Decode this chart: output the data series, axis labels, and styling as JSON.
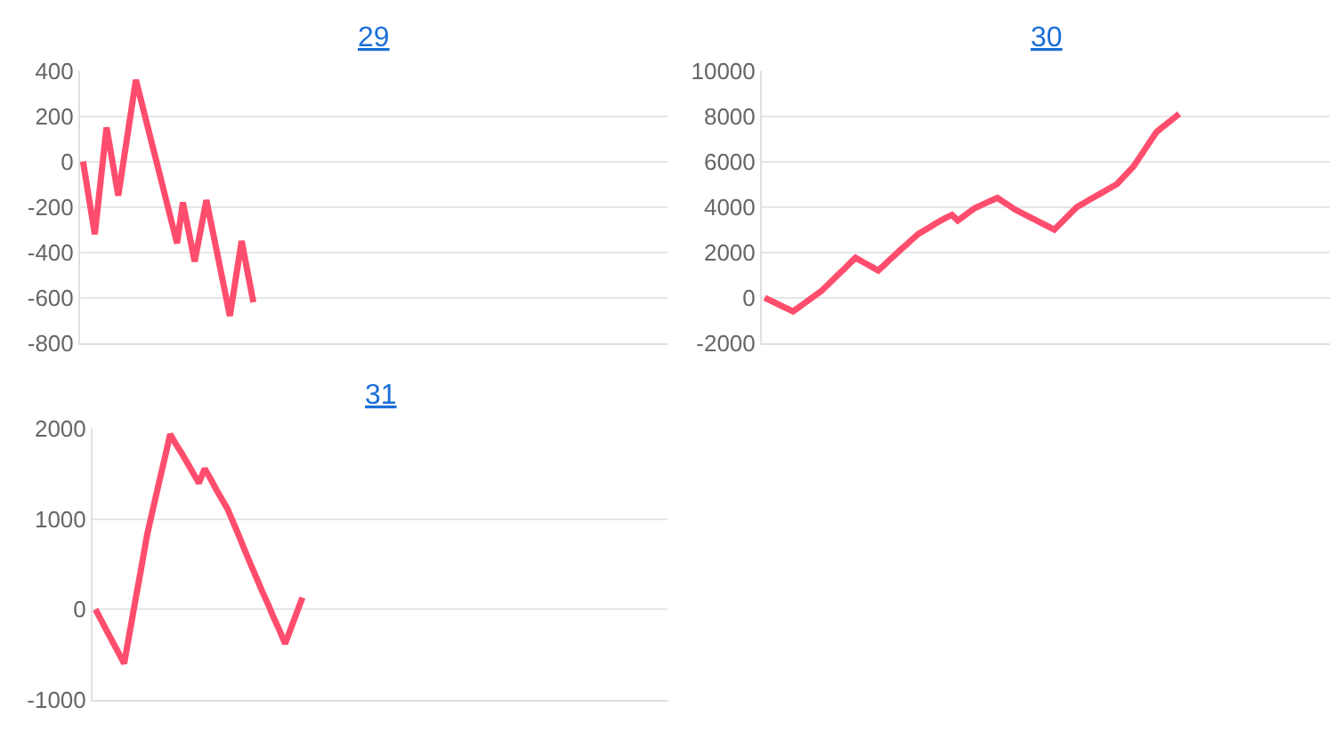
{
  "chart_data": [
    {
      "type": "line",
      "title": "29",
      "color": "#ff4d6d",
      "grid": "y",
      "tick_labels": "y",
      "marker": "none",
      "line_style": "solid",
      "ylim": [
        -800,
        400
      ],
      "yticks": [
        -800,
        -600,
        -400,
        -200,
        0,
        200,
        400
      ],
      "categories": [
        null,
        null,
        null,
        null,
        null,
        null,
        null,
        null,
        null,
        null,
        null,
        null,
        null,
        null,
        null,
        null,
        null,
        null,
        null,
        null,
        null,
        null,
        null,
        null,
        null,
        null,
        null,
        null,
        null,
        null,
        null,
        null,
        null,
        null,
        null,
        null,
        null,
        null,
        null,
        null,
        null,
        null,
        null,
        null,
        null,
        null,
        null,
        null,
        null,
        null,
        null,
        null,
        null,
        null,
        null,
        null,
        null,
        null,
        null,
        null,
        null,
        null,
        null,
        null,
        null,
        null,
        null,
        null,
        null,
        null,
        null,
        null,
        null,
        null,
        null,
        null,
        null,
        null,
        null,
        null,
        null,
        null,
        null,
        null,
        null,
        null,
        null,
        null,
        null,
        null,
        null,
        null,
        null,
        null,
        null,
        null,
        null,
        null,
        null,
        null
      ],
      "values": [
        0,
        -160,
        -320,
        -85,
        150,
        0,
        -150,
        20,
        190,
        360,
        257,
        154,
        51,
        -51,
        -154,
        -257,
        -360,
        -180,
        -310,
        -440,
        -305,
        -170,
        -297,
        -425,
        -552,
        -680,
        -515,
        -350,
        -485,
        -620,
        null,
        null,
        null,
        null,
        null,
        null,
        null,
        null,
        null,
        null,
        null,
        null,
        null,
        null,
        null,
        null,
        null,
        null,
        null,
        null,
        null,
        null,
        null,
        null,
        null,
        null,
        null,
        null,
        null,
        null,
        null,
        null,
        null,
        null,
        null,
        null,
        null,
        null,
        null,
        null,
        null,
        null,
        null,
        null,
        null,
        null,
        null,
        null,
        null,
        null,
        null,
        null,
        null,
        null,
        null,
        null,
        null,
        null,
        null,
        null,
        null,
        null,
        null,
        null,
        null,
        null,
        null,
        null,
        null,
        null
      ]
    },
    {
      "type": "line",
      "title": "30",
      "color": "#ff4d6d",
      "grid": "y",
      "tick_labels": "y",
      "marker": "none",
      "line_style": "solid",
      "ylim": [
        -2000,
        10000
      ],
      "yticks": [
        -2000,
        0,
        2000,
        4000,
        6000,
        8000,
        10000
      ],
      "categories": [
        null,
        null,
        null,
        null,
        null,
        null,
        null,
        null,
        null,
        null,
        null,
        null,
        null,
        null,
        null,
        null,
        null,
        null,
        null,
        null,
        null,
        null,
        null,
        null,
        null,
        null,
        null,
        null,
        null,
        null,
        null,
        null,
        null,
        null,
        null,
        null,
        null,
        null,
        null,
        null,
        null,
        null,
        null,
        null,
        null,
        null,
        null,
        null,
        null,
        null,
        null,
        null,
        null,
        null,
        null,
        null,
        null,
        null,
        null,
        null,
        null,
        null,
        null,
        null,
        null,
        null,
        null,
        null,
        null,
        null,
        null,
        null,
        null,
        null,
        null,
        null,
        null,
        null,
        null,
        null,
        null,
        null,
        null,
        null,
        null,
        null,
        null,
        null,
        null,
        null,
        null,
        null,
        null,
        null,
        null,
        null,
        null,
        null,
        null,
        null
      ],
      "values": [
        0,
        -120,
        -240,
        -360,
        -480,
        -600,
        -420,
        -240,
        -60,
        120,
        300,
        540,
        790,
        1030,
        1270,
        1520,
        1760,
        1620,
        1480,
        1340,
        1200,
        1430,
        1670,
        1900,
        2130,
        2350,
        2580,
        2800,
        2950,
        3100,
        3250,
        3400,
        3530,
        3650,
        3400,
        3580,
        3770,
        3950,
        4060,
        4180,
        4290,
        4400,
        4230,
        4070,
        3900,
        3770,
        3640,
        3510,
        3390,
        3260,
        3130,
        3000,
        3250,
        3500,
        3750,
        4000,
        4140,
        4290,
        4430,
        4570,
        4710,
        4860,
        5000,
        5270,
        5530,
        5800,
        6180,
        6550,
        6930,
        7300,
        7500,
        7700,
        7900,
        8100,
        null,
        null,
        null,
        null,
        null,
        null,
        null,
        null,
        null,
        null,
        null,
        null,
        null,
        null,
        null,
        null,
        null,
        null,
        null,
        null,
        null,
        null,
        null,
        null,
        null,
        null
      ]
    },
    {
      "type": "line",
      "title": "31",
      "color": "#ff4d6d",
      "grid": "y",
      "tick_labels": "y",
      "marker": "none",
      "line_style": "solid",
      "ylim": [
        -1000,
        2000
      ],
      "yticks": [
        -1000,
        0,
        1000,
        2000
      ],
      "categories": [
        null,
        null,
        null,
        null,
        null,
        null,
        null,
        null,
        null,
        null,
        null,
        null,
        null,
        null,
        null,
        null,
        null,
        null,
        null,
        null,
        null,
        null,
        null,
        null,
        null,
        null,
        null,
        null,
        null,
        null,
        null,
        null,
        null,
        null,
        null,
        null,
        null,
        null,
        null,
        null,
        null,
        null,
        null,
        null,
        null,
        null,
        null,
        null,
        null,
        null,
        null,
        null,
        null,
        null,
        null,
        null,
        null,
        null,
        null,
        null,
        null,
        null,
        null,
        null,
        null,
        null,
        null,
        null,
        null,
        null,
        null,
        null,
        null,
        null,
        null,
        null,
        null,
        null,
        null,
        null,
        null,
        null,
        null,
        null,
        null,
        null,
        null,
        null,
        null,
        null,
        null,
        null,
        null,
        null,
        null,
        null,
        null,
        null,
        null,
        null
      ],
      "values": [
        0,
        -120,
        -240,
        -360,
        -480,
        -600,
        -240,
        120,
        470,
        830,
        1110,
        1390,
        1660,
        1940,
        1830,
        1730,
        1620,
        1510,
        1400,
        1560,
        1450,
        1330,
        1220,
        1110,
        960,
        810,
        650,
        500,
        350,
        200,
        60,
        -90,
        -230,
        -380,
        -210,
        -40,
        130,
        null,
        null,
        null,
        null,
        null,
        null,
        null,
        null,
        null,
        null,
        null,
        null,
        null,
        null,
        null,
        null,
        null,
        null,
        null,
        null,
        null,
        null,
        null,
        null,
        null,
        null,
        null,
        null,
        null,
        null,
        null,
        null,
        null,
        null,
        null,
        null,
        null,
        null,
        null,
        null,
        null,
        null,
        null,
        null,
        null,
        null,
        null,
        null,
        null,
        null,
        null,
        null,
        null,
        null,
        null,
        null,
        null,
        null,
        null,
        null,
        null,
        null,
        null
      ]
    }
  ]
}
